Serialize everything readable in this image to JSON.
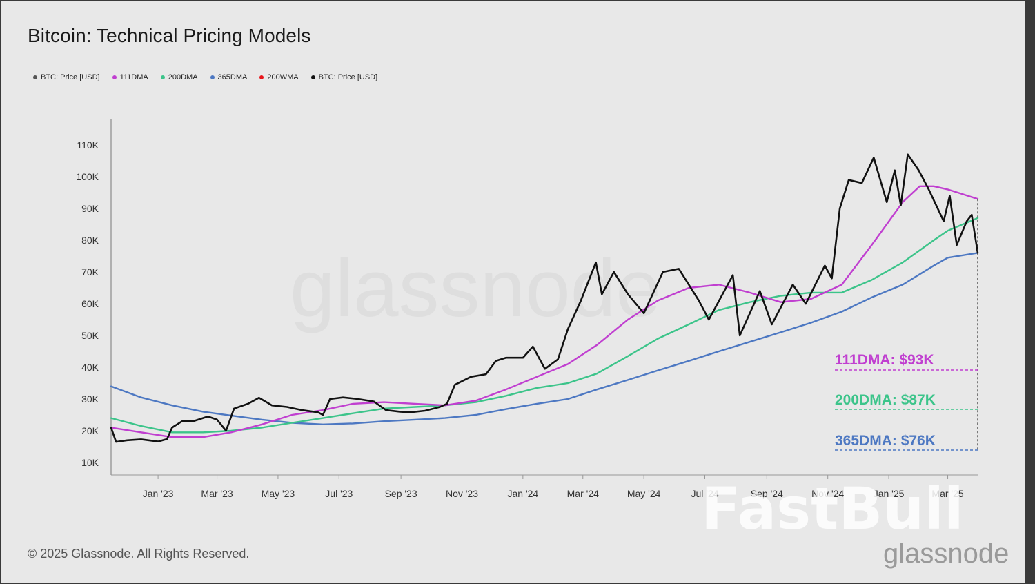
{
  "title": "Bitcoin: Technical Pricing Models",
  "legend": [
    {
      "label": "BTC: Price [USD]",
      "color": "#555555",
      "disabled": true
    },
    {
      "label": "111DMA",
      "color": "#c03fd0",
      "disabled": false
    },
    {
      "label": "200DMA",
      "color": "#3cc48a",
      "disabled": false
    },
    {
      "label": "365DMA",
      "color": "#4d78c2",
      "disabled": false
    },
    {
      "label": "200WMA",
      "color": "#e8161b",
      "disabled": true
    },
    {
      "label": "BTC: Price [USD]",
      "color": "#111111",
      "disabled": false
    }
  ],
  "footer": "© 2025 Glassnode. All Rights Reserved.",
  "watermarks": {
    "center": "glassnode",
    "overlay": "FastBull",
    "brand": "glassnode"
  },
  "chart_data": {
    "type": "line",
    "title": "Bitcoin: Technical Pricing Models",
    "ylim": [
      10000,
      110000
    ],
    "yticks": [
      "10K",
      "20K",
      "30K",
      "40K",
      "50K",
      "60K",
      "70K",
      "80K",
      "90K",
      "100K",
      "110K"
    ],
    "xlim": [
      "2022-11-15",
      "2025-03-31"
    ],
    "xticks": [
      {
        "date": "2023-01-01",
        "label": "Jan '23"
      },
      {
        "date": "2023-03-01",
        "label": "Mar '23"
      },
      {
        "date": "2023-05-01",
        "label": "May '23"
      },
      {
        "date": "2023-07-01",
        "label": "Jul '23"
      },
      {
        "date": "2023-09-01",
        "label": "Sep '23"
      },
      {
        "date": "2023-11-01",
        "label": "Nov '23"
      },
      {
        "date": "2024-01-01",
        "label": "Jan '24"
      },
      {
        "date": "2024-03-01",
        "label": "Mar '24"
      },
      {
        "date": "2024-05-01",
        "label": "May '24"
      },
      {
        "date": "2024-07-01",
        "label": "Jul '24"
      },
      {
        "date": "2024-09-01",
        "label": "Sep '24"
      },
      {
        "date": "2024-11-01",
        "label": "Nov '24"
      },
      {
        "date": "2025-01-01",
        "label": "Jan '25"
      },
      {
        "date": "2025-03-01",
        "label": "Mar '25"
      }
    ],
    "series": [
      {
        "name": "365DMA",
        "color": "#4d78c2",
        "points": [
          [
            "2022-11-15",
            34000
          ],
          [
            "2022-12-15",
            30500
          ],
          [
            "2023-01-15",
            28000
          ],
          [
            "2023-02-15",
            26000
          ],
          [
            "2023-03-15",
            24800
          ],
          [
            "2023-04-15",
            23500
          ],
          [
            "2023-05-15",
            22500
          ],
          [
            "2023-06-15",
            22000
          ],
          [
            "2023-07-15",
            22300
          ],
          [
            "2023-08-15",
            23000
          ],
          [
            "2023-09-15",
            23500
          ],
          [
            "2023-10-15",
            24000
          ],
          [
            "2023-11-15",
            25000
          ],
          [
            "2023-12-15",
            26800
          ],
          [
            "2024-01-15",
            28500
          ],
          [
            "2024-02-15",
            30000
          ],
          [
            "2024-03-15",
            33000
          ],
          [
            "2024-04-15",
            36000
          ],
          [
            "2024-05-15",
            39000
          ],
          [
            "2024-06-15",
            42000
          ],
          [
            "2024-07-15",
            45000
          ],
          [
            "2024-08-15",
            48000
          ],
          [
            "2024-09-15",
            51000
          ],
          [
            "2024-10-15",
            54000
          ],
          [
            "2024-11-15",
            57500
          ],
          [
            "2024-12-15",
            62000
          ],
          [
            "2025-01-15",
            66000
          ],
          [
            "2025-02-15",
            72000
          ],
          [
            "2025-03-01",
            74500
          ],
          [
            "2025-03-31",
            76000
          ]
        ]
      },
      {
        "name": "200DMA",
        "color": "#3cc48a",
        "points": [
          [
            "2022-11-15",
            24000
          ],
          [
            "2022-12-15",
            21500
          ],
          [
            "2023-01-15",
            19500
          ],
          [
            "2023-02-15",
            19500
          ],
          [
            "2023-03-15",
            20000
          ],
          [
            "2023-04-15",
            21000
          ],
          [
            "2023-05-15",
            22500
          ],
          [
            "2023-06-15",
            24000
          ],
          [
            "2023-07-15",
            25500
          ],
          [
            "2023-08-15",
            27000
          ],
          [
            "2023-09-15",
            27500
          ],
          [
            "2023-10-15",
            28000
          ],
          [
            "2023-11-15",
            29000
          ],
          [
            "2023-12-15",
            31000
          ],
          [
            "2024-01-15",
            33500
          ],
          [
            "2024-02-15",
            35000
          ],
          [
            "2024-03-15",
            38000
          ],
          [
            "2024-04-15",
            43500
          ],
          [
            "2024-05-15",
            49000
          ],
          [
            "2024-06-15",
            53500
          ],
          [
            "2024-07-15",
            58000
          ],
          [
            "2024-08-15",
            60500
          ],
          [
            "2024-09-15",
            62500
          ],
          [
            "2024-10-15",
            63500
          ],
          [
            "2024-11-15",
            63500
          ],
          [
            "2024-12-15",
            67500
          ],
          [
            "2025-01-15",
            73000
          ],
          [
            "2025-02-15",
            80000
          ],
          [
            "2025-03-01",
            83000
          ],
          [
            "2025-03-31",
            87000
          ]
        ]
      },
      {
        "name": "111DMA",
        "color": "#c03fd0",
        "points": [
          [
            "2022-11-15",
            21000
          ],
          [
            "2022-12-15",
            19500
          ],
          [
            "2023-01-15",
            18000
          ],
          [
            "2023-02-15",
            18000
          ],
          [
            "2023-03-15",
            19500
          ],
          [
            "2023-04-15",
            22000
          ],
          [
            "2023-05-15",
            25000
          ],
          [
            "2023-06-15",
            26500
          ],
          [
            "2023-07-15",
            28500
          ],
          [
            "2023-08-15",
            29000
          ],
          [
            "2023-09-15",
            28500
          ],
          [
            "2023-10-15",
            28000
          ],
          [
            "2023-11-15",
            29500
          ],
          [
            "2023-12-15",
            33000
          ],
          [
            "2024-01-15",
            37000
          ],
          [
            "2024-02-15",
            41000
          ],
          [
            "2024-03-15",
            47000
          ],
          [
            "2024-04-15",
            55000
          ],
          [
            "2024-05-15",
            61000
          ],
          [
            "2024-06-15",
            65000
          ],
          [
            "2024-07-15",
            66000
          ],
          [
            "2024-08-15",
            63500
          ],
          [
            "2024-09-15",
            60500
          ],
          [
            "2024-10-15",
            61500
          ],
          [
            "2024-11-15",
            66000
          ],
          [
            "2024-12-15",
            78500
          ],
          [
            "2025-01-15",
            92000
          ],
          [
            "2025-02-01",
            97000
          ],
          [
            "2025-02-15",
            97000
          ],
          [
            "2025-03-01",
            96000
          ],
          [
            "2025-03-31",
            93000
          ]
        ]
      },
      {
        "name": "BTC: Price [USD]",
        "color": "#111111",
        "points": [
          [
            "2022-11-15",
            21000
          ],
          [
            "2022-11-20",
            16500
          ],
          [
            "2022-12-01",
            17000
          ],
          [
            "2022-12-15",
            17300
          ],
          [
            "2023-01-01",
            16600
          ],
          [
            "2023-01-10",
            17400
          ],
          [
            "2023-01-15",
            21000
          ],
          [
            "2023-01-25",
            23000
          ],
          [
            "2023-02-05",
            23000
          ],
          [
            "2023-02-20",
            24500
          ],
          [
            "2023-03-01",
            23500
          ],
          [
            "2023-03-10",
            20000
          ],
          [
            "2023-03-18",
            27000
          ],
          [
            "2023-04-01",
            28500
          ],
          [
            "2023-04-12",
            30400
          ],
          [
            "2023-04-25",
            28000
          ],
          [
            "2023-05-10",
            27500
          ],
          [
            "2023-05-25",
            26500
          ],
          [
            "2023-06-10",
            25800
          ],
          [
            "2023-06-15",
            25000
          ],
          [
            "2023-06-22",
            30000
          ],
          [
            "2023-07-05",
            30500
          ],
          [
            "2023-07-20",
            30000
          ],
          [
            "2023-08-05",
            29200
          ],
          [
            "2023-08-17",
            26500
          ],
          [
            "2023-08-31",
            26000
          ],
          [
            "2023-09-10",
            25800
          ],
          [
            "2023-09-25",
            26300
          ],
          [
            "2023-10-10",
            27500
          ],
          [
            "2023-10-17",
            28500
          ],
          [
            "2023-10-25",
            34500
          ],
          [
            "2023-11-10",
            37000
          ],
          [
            "2023-11-25",
            37800
          ],
          [
            "2023-12-05",
            42000
          ],
          [
            "2023-12-15",
            43000
          ],
          [
            "2024-01-01",
            43000
          ],
          [
            "2024-01-11",
            46500
          ],
          [
            "2024-01-23",
            39500
          ],
          [
            "2024-02-05",
            42500
          ],
          [
            "2024-02-15",
            52000
          ],
          [
            "2024-02-28",
            61000
          ],
          [
            "2024-03-14",
            73000
          ],
          [
            "2024-03-20",
            63000
          ],
          [
            "2024-04-01",
            70000
          ],
          [
            "2024-04-15",
            63000
          ],
          [
            "2024-05-01",
            57000
          ],
          [
            "2024-05-20",
            70000
          ],
          [
            "2024-06-05",
            71000
          ],
          [
            "2024-06-25",
            61000
          ],
          [
            "2024-07-05",
            55000
          ],
          [
            "2024-07-29",
            69000
          ],
          [
            "2024-08-05",
            50000
          ],
          [
            "2024-08-25",
            64000
          ],
          [
            "2024-09-06",
            53500
          ],
          [
            "2024-09-27",
            66000
          ],
          [
            "2024-10-10",
            60000
          ],
          [
            "2024-10-29",
            72000
          ],
          [
            "2024-11-05",
            68000
          ],
          [
            "2024-11-13",
            90000
          ],
          [
            "2024-11-22",
            99000
          ],
          [
            "2024-12-05",
            98000
          ],
          [
            "2024-12-17",
            106000
          ],
          [
            "2024-12-30",
            92000
          ],
          [
            "2025-01-07",
            102000
          ],
          [
            "2025-01-13",
            91000
          ],
          [
            "2025-01-20",
            107000
          ],
          [
            "2025-01-31",
            102000
          ],
          [
            "2025-02-10",
            96000
          ],
          [
            "2025-02-25",
            86000
          ],
          [
            "2025-03-03",
            94000
          ],
          [
            "2025-03-10",
            78500
          ],
          [
            "2025-03-20",
            86000
          ],
          [
            "2025-03-25",
            88000
          ],
          [
            "2025-03-31",
            76000
          ]
        ]
      }
    ],
    "annotations": [
      {
        "label": "111DMA: $93K",
        "color": "#c03fd0",
        "series": "111DMA"
      },
      {
        "label": "200DMA: $87K",
        "color": "#3cc48a",
        "series": "200DMA"
      },
      {
        "label": "365DMA: $76K",
        "color": "#4d78c2",
        "series": "365DMA"
      }
    ]
  }
}
